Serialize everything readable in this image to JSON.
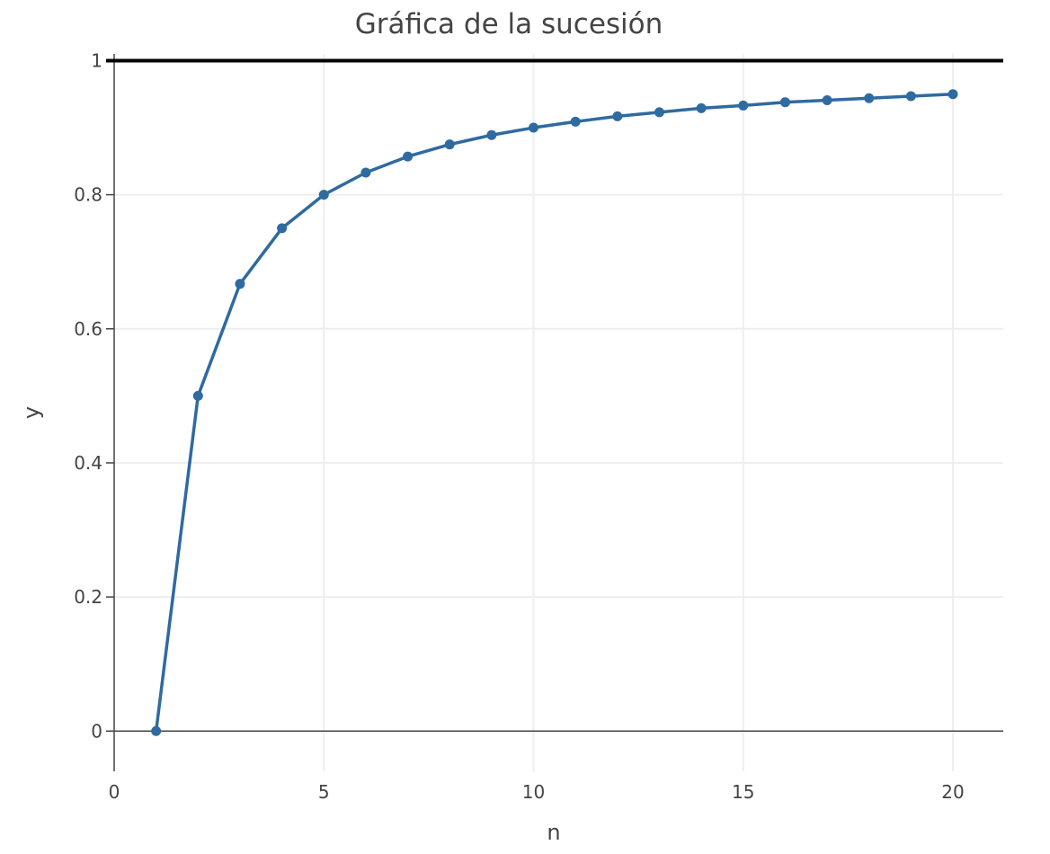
{
  "chart_data": {
    "type": "line",
    "title": "Gráfica de la sucesión",
    "xlabel": "n",
    "ylabel": "y",
    "xlim": [
      -0.0,
      21.2
    ],
    "ylim": [
      -0.06,
      1.01
    ],
    "grid": true,
    "x_ticks": [
      0,
      5,
      10,
      15,
      20
    ],
    "x_tick_labels": [
      "0",
      "5",
      "10",
      "15",
      "20"
    ],
    "y_ticks": [
      0,
      0.2,
      0.4,
      0.6,
      0.8,
      1
    ],
    "y_tick_labels": [
      "0",
      "0.2",
      "0.4",
      "0.6",
      "0.8",
      "1"
    ],
    "horizontal_line": {
      "y": 1,
      "color": "#000000"
    },
    "series": [
      {
        "color": "#2f6aa1",
        "mode": "lines+markers",
        "x": [
          1,
          2,
          3,
          4,
          5,
          6,
          7,
          8,
          9,
          10,
          11,
          12,
          13,
          14,
          15,
          16,
          17,
          18,
          19,
          20
        ],
        "y": [
          0,
          0.5,
          0.667,
          0.75,
          0.8,
          0.833,
          0.857,
          0.875,
          0.889,
          0.9,
          0.909,
          0.917,
          0.923,
          0.929,
          0.933,
          0.938,
          0.941,
          0.944,
          0.947,
          0.95
        ]
      }
    ]
  }
}
